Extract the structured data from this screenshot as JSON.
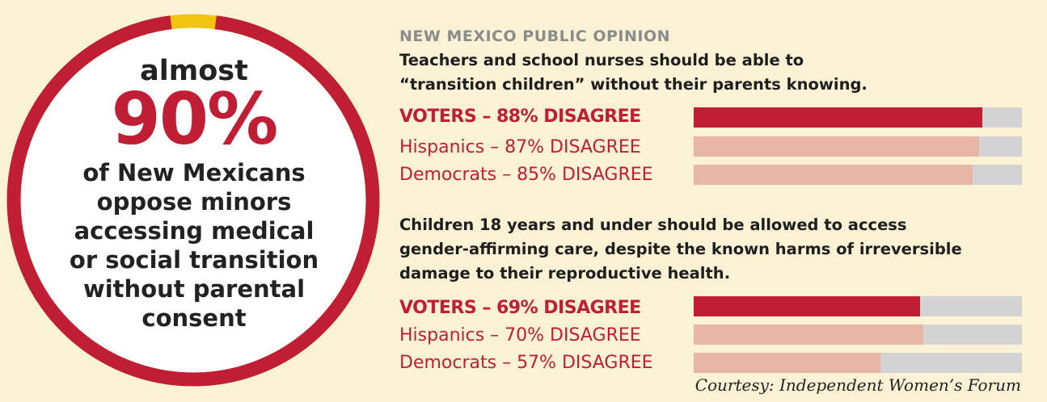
{
  "colors": {
    "primary": "#c01e35",
    "secondary": "#e8b6a7",
    "track": "#d3d3d3",
    "ring_gap": "#f1c40f",
    "background": "#fbf1d4"
  },
  "ring": {
    "almost": "almost",
    "percent_text": "90%",
    "percent_value": 90,
    "body_lines": [
      "of New Mexicans",
      "oppose minors",
      "accessing medical",
      "or social transition",
      "without parental",
      "consent"
    ]
  },
  "header": {
    "eyebrow": "NEW MEXICO PUBLIC OPINION"
  },
  "chart_data": [
    {
      "type": "bar",
      "title": "Teachers and school nurses should be able to “transition children” without their parents knowing.",
      "title_lines": [
        "Teachers and school nurses should be able to",
        "“transition children” without their parents knowing."
      ],
      "xlim": [
        0,
        100
      ],
      "rows": [
        {
          "label": "VOTERS – 88% DISAGREE",
          "value": 88,
          "style": "primary"
        },
        {
          "label": "Hispanics – 87% DISAGREE",
          "value": 87,
          "style": "secondary"
        },
        {
          "label": "Democrats – 85% DISAGREE",
          "value": 85,
          "style": "secondary"
        }
      ]
    },
    {
      "type": "bar",
      "title": "Children 18 years and under should be allowed to access gender-affirming care, despite the known harms of irreversible damage to their reproductive health.",
      "title_lines": [
        "Children 18 years and under should be allowed to access",
        "gender-affirming care, despite the known harms of irreversible",
        "damage to their reproductive health."
      ],
      "xlim": [
        0,
        100
      ],
      "rows": [
        {
          "label": "VOTERS – 69% DISAGREE",
          "value": 69,
          "style": "primary"
        },
        {
          "label": "Hispanics – 70% DISAGREE",
          "value": 70,
          "style": "secondary"
        },
        {
          "label": "Democrats – 57% DISAGREE",
          "value": 57,
          "style": "secondary"
        }
      ]
    }
  ],
  "footer": {
    "courtesy": "Courtesy: Independent Women’s Forum"
  }
}
